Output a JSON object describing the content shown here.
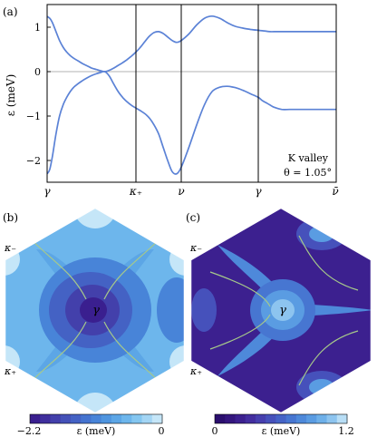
{
  "chart_data": [
    {
      "panel_label": "(a)",
      "type": "line",
      "ylabel": "ε (meV)",
      "xticks": [
        "γ",
        "κ₊",
        "ν",
        "γ",
        "ν̄"
      ],
      "yticks": [
        "1",
        "0",
        "−1",
        "−2"
      ],
      "ylim": [
        -2.55,
        1.5
      ],
      "annotation": [
        "K valley",
        "θ = 1.05°"
      ],
      "series": [
        {
          "x": [
            0,
            0.03,
            0.06,
            0.1,
            0.14,
            0.18,
            0.22,
            0.26,
            0.3,
            0.35,
            0.4,
            0.45,
            0.5,
            0.55,
            0.6,
            0.65,
            0.7,
            0.75,
            0.8,
            0.85,
            0.9,
            0.95,
            1.0,
            1.05,
            1.1,
            1.15,
            1.2,
            1.25,
            1.3,
            1.35,
            1.4,
            1.45,
            1.5,
            1.55,
            1.6,
            1.65,
            1.7,
            1.75,
            1.8,
            1.85,
            1.9,
            1.95,
            2.0,
            2.05,
            2.1,
            2.15,
            2.2,
            2.3,
            2.4,
            2.5,
            2.6,
            2.7,
            2.8,
            2.9,
            3.0
          ],
          "values": [
            1.24,
            1.2,
            1.1,
            0.9,
            0.7,
            0.55,
            0.44,
            0.36,
            0.3,
            0.24,
            0.18,
            0.13,
            0.08,
            0.05,
            0.02,
            0.0,
            0.03,
            0.08,
            0.14,
            0.2,
            0.27,
            0.35,
            0.44,
            0.55,
            0.68,
            0.8,
            0.88,
            0.9,
            0.86,
            0.78,
            0.7,
            0.66,
            0.7,
            0.85,
            1.05,
            1.2,
            1.25,
            1.2,
            1.1,
            1.02,
            0.98,
            0.95,
            0.93,
            0.92,
            0.91,
            0.9,
            0.9,
            0.9,
            0.9,
            0.9,
            0.9,
            0.9,
            0.9,
            0.9,
            0.9
          ]
        },
        {
          "x": [
            0,
            0.03,
            0.06,
            0.1,
            0.14,
            0.18,
            0.22,
            0.26,
            0.3,
            0.35,
            0.4,
            0.45,
            0.5,
            0.55,
            0.6,
            0.65,
            0.7,
            0.75,
            0.8,
            0.85,
            0.9,
            0.95,
            1.0,
            1.05,
            1.1,
            1.15,
            1.2,
            1.25,
            1.3,
            1.35,
            1.4,
            1.45,
            1.5,
            1.55,
            1.6,
            1.65,
            1.7,
            1.75,
            1.8,
            1.85,
            1.9,
            1.95,
            2.0,
            2.05,
            2.1,
            2.15,
            2.2,
            2.3,
            2.4,
            2.5,
            2.6,
            2.7,
            2.8,
            2.9,
            3.0
          ],
          "values": [
            -2.3,
            -2.2,
            -1.9,
            -1.4,
            -1.0,
            -0.75,
            -0.58,
            -0.45,
            -0.35,
            -0.27,
            -0.2,
            -0.14,
            -0.09,
            -0.05,
            -0.02,
            0.0,
            -0.1,
            -0.28,
            -0.45,
            -0.58,
            -0.68,
            -0.76,
            -0.82,
            -0.88,
            -0.95,
            -1.05,
            -1.2,
            -1.4,
            -1.7,
            -2.0,
            -2.25,
            -2.3,
            -2.15,
            -1.7,
            -1.2,
            -0.75,
            -0.45,
            -0.35,
            -0.33,
            -0.36,
            -0.42,
            -0.5,
            -0.58,
            -0.65,
            -0.7,
            -0.75,
            -0.8,
            -0.85,
            -0.85,
            -0.85,
            -0.85,
            -0.85,
            -0.85,
            -0.85,
            -0.85
          ]
        }
      ]
    },
    {
      "panel_label": "(b)",
      "type": "heatmap",
      "point_labels": [
        "γ",
        "κ₋",
        "κ₊"
      ],
      "colorbar": {
        "min_label": "−2.2",
        "max_label": "0",
        "label": "ε (meV)",
        "min": -2.2,
        "max": 0
      },
      "colors": [
        "#3a1f8f",
        "#3f2f9d",
        "#4340ab",
        "#4451b8",
        "#4462c4",
        "#4473cf",
        "#4884d8",
        "#4f95df",
        "#5ca6e6",
        "#6db6ec",
        "#84c6f0",
        "#a3d5f4",
        "#c5e6f8"
      ]
    },
    {
      "panel_label": "(c)",
      "type": "heatmap",
      "point_labels": [
        "γ",
        "κ₋",
        "κ₊"
      ],
      "colorbar": {
        "min_label": "0",
        "max_label": "1.2",
        "label": "ε (meV)",
        "min": 0,
        "max": 1.2
      },
      "colors": [
        "#2b0f6e",
        "#34167e",
        "#3c208f",
        "#432e9f",
        "#463fae",
        "#4651bb",
        "#4563c6",
        "#4776d1",
        "#4e89da",
        "#5a9ce2",
        "#6eb0e9",
        "#8dc4ef",
        "#b8def6"
      ]
    }
  ]
}
